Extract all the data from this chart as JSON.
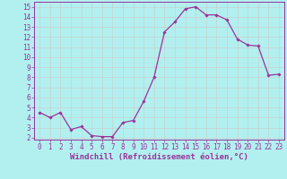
{
  "x": [
    0,
    1,
    2,
    3,
    4,
    5,
    6,
    7,
    8,
    9,
    10,
    11,
    12,
    13,
    14,
    15,
    16,
    17,
    18,
    19,
    20,
    21,
    22,
    23
  ],
  "y": [
    4.5,
    4.0,
    4.5,
    2.8,
    3.1,
    2.2,
    2.1,
    2.1,
    3.5,
    3.7,
    5.6,
    8.0,
    12.5,
    13.5,
    14.8,
    15.0,
    14.2,
    14.2,
    13.7,
    11.8,
    11.2,
    11.1,
    8.2,
    8.3
  ],
  "line_color": "#993399",
  "marker": "D",
  "marker_size": 1.8,
  "linewidth": 0.9,
  "background_color": "#b2f0f0",
  "grid_color": "#cccccc",
  "xlabel": "Windchill (Refroidissement éolien,°C)",
  "xlim": [
    -0.5,
    23.5
  ],
  "ylim": [
    1.8,
    15.5
  ],
  "yticks": [
    2,
    3,
    4,
    5,
    6,
    7,
    8,
    9,
    10,
    11,
    12,
    13,
    14,
    15
  ],
  "xticks": [
    0,
    1,
    2,
    3,
    4,
    5,
    6,
    7,
    8,
    9,
    10,
    11,
    12,
    13,
    14,
    15,
    16,
    17,
    18,
    19,
    20,
    21,
    22,
    23
  ],
  "tick_color": "#993399",
  "label_color": "#993399",
  "xlabel_fontsize": 6.5,
  "tick_fontsize": 5.5,
  "border_color": "#993399",
  "spine_color": "#993399"
}
